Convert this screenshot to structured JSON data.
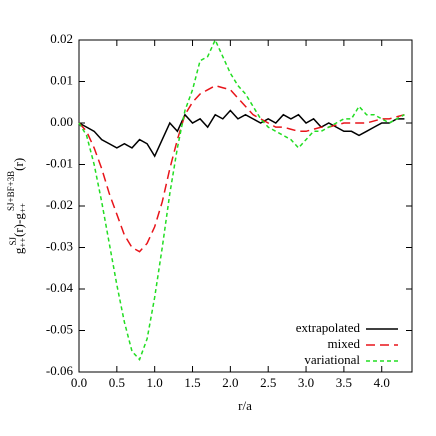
{
  "chart_data": {
    "type": "line",
    "x_label": "r/a",
    "y_label": [
      "g",
      "++",
      "SJ",
      "(r)-g",
      "++",
      "SJ+BF+3B",
      "(r)"
    ],
    "x": [
      0.0,
      0.1,
      0.2,
      0.3,
      0.4,
      0.5,
      0.6,
      0.7,
      0.8,
      0.9,
      1.0,
      1.1,
      1.2,
      1.3,
      1.4,
      1.5,
      1.6,
      1.7,
      1.8,
      1.9,
      2.0,
      2.1,
      2.2,
      2.3,
      2.4,
      2.5,
      2.6,
      2.7,
      2.8,
      2.9,
      3.0,
      3.1,
      3.2,
      3.3,
      3.4,
      3.5,
      3.6,
      3.7,
      3.8,
      3.9,
      4.0,
      4.1,
      4.2,
      4.3
    ],
    "series": [
      {
        "name": "extrapolated",
        "color": "#000000",
        "dash": "none",
        "values": [
          0,
          -0.001,
          -0.002,
          -0.004,
          -0.005,
          -0.006,
          -0.005,
          -0.006,
          -0.004,
          -0.005,
          -0.008,
          -0.004,
          0.0,
          -0.002,
          0.002,
          0.0,
          0.001,
          -0.001,
          0.002,
          0.001,
          0.003,
          0.001,
          0.002,
          0.001,
          0.0,
          0.001,
          0.0,
          0.002,
          0.001,
          0.002,
          0.0,
          0.001,
          -0.001,
          0.0,
          -0.001,
          -0.002,
          -0.002,
          -0.003,
          -0.002,
          -0.001,
          0.0,
          0.0,
          0.001,
          0.001
        ]
      },
      {
        "name": "mixed",
        "color": "#e8141a",
        "dash": "9 5",
        "values": [
          0,
          -0.002,
          -0.006,
          -0.011,
          -0.017,
          -0.022,
          -0.027,
          -0.03,
          -0.031,
          -0.029,
          -0.025,
          -0.019,
          -0.011,
          -0.004,
          0.002,
          0.005,
          0.007,
          0.008,
          0.009,
          0.0085,
          0.008,
          0.006,
          0.004,
          0.002,
          0.001,
          0.0,
          -0.001,
          -0.001,
          -0.0015,
          -0.002,
          -0.002,
          -0.0015,
          -0.001,
          -0.001,
          -0.0005,
          0.0,
          0.0,
          0.0,
          0.0,
          0.0005,
          0.001,
          0.001,
          0.0015,
          0.002
        ]
      },
      {
        "name": "variational",
        "color": "#22dd22",
        "dash": "4 3",
        "values": [
          0,
          -0.003,
          -0.01,
          -0.019,
          -0.029,
          -0.039,
          -0.048,
          -0.055,
          -0.057,
          -0.052,
          -0.042,
          -0.03,
          -0.017,
          -0.006,
          0.003,
          0.008,
          0.015,
          0.016,
          0.02,
          0.016,
          0.012,
          0.009,
          0.007,
          0.004,
          0.001,
          -0.001,
          -0.002,
          -0.003,
          -0.004,
          -0.006,
          -0.004,
          -0.002,
          -0.002,
          -0.001,
          0.0,
          0.001,
          0.001,
          0.004,
          0.002,
          0.002,
          0.001,
          0.0,
          0.001,
          0.002
        ]
      }
    ],
    "xlim": [
      0,
      4.4
    ],
    "ylim": [
      -0.06,
      0.02
    ],
    "xticks": [
      {
        "value": 0,
        "label": "0.0"
      },
      0.5,
      {
        "value": 1,
        "label": "1.0"
      },
      1.5,
      {
        "value": 2,
        "label": "2.0"
      },
      2.5,
      {
        "value": 3,
        "label": "3.0"
      },
      3.5,
      {
        "value": 4,
        "label": "4.0"
      }
    ],
    "yticks": [
      -0.06,
      -0.05,
      -0.04,
      -0.03,
      -0.02,
      -0.01,
      {
        "value": 0,
        "label": "0.00"
      },
      0.01,
      0.02
    ],
    "legend": "lower right"
  }
}
